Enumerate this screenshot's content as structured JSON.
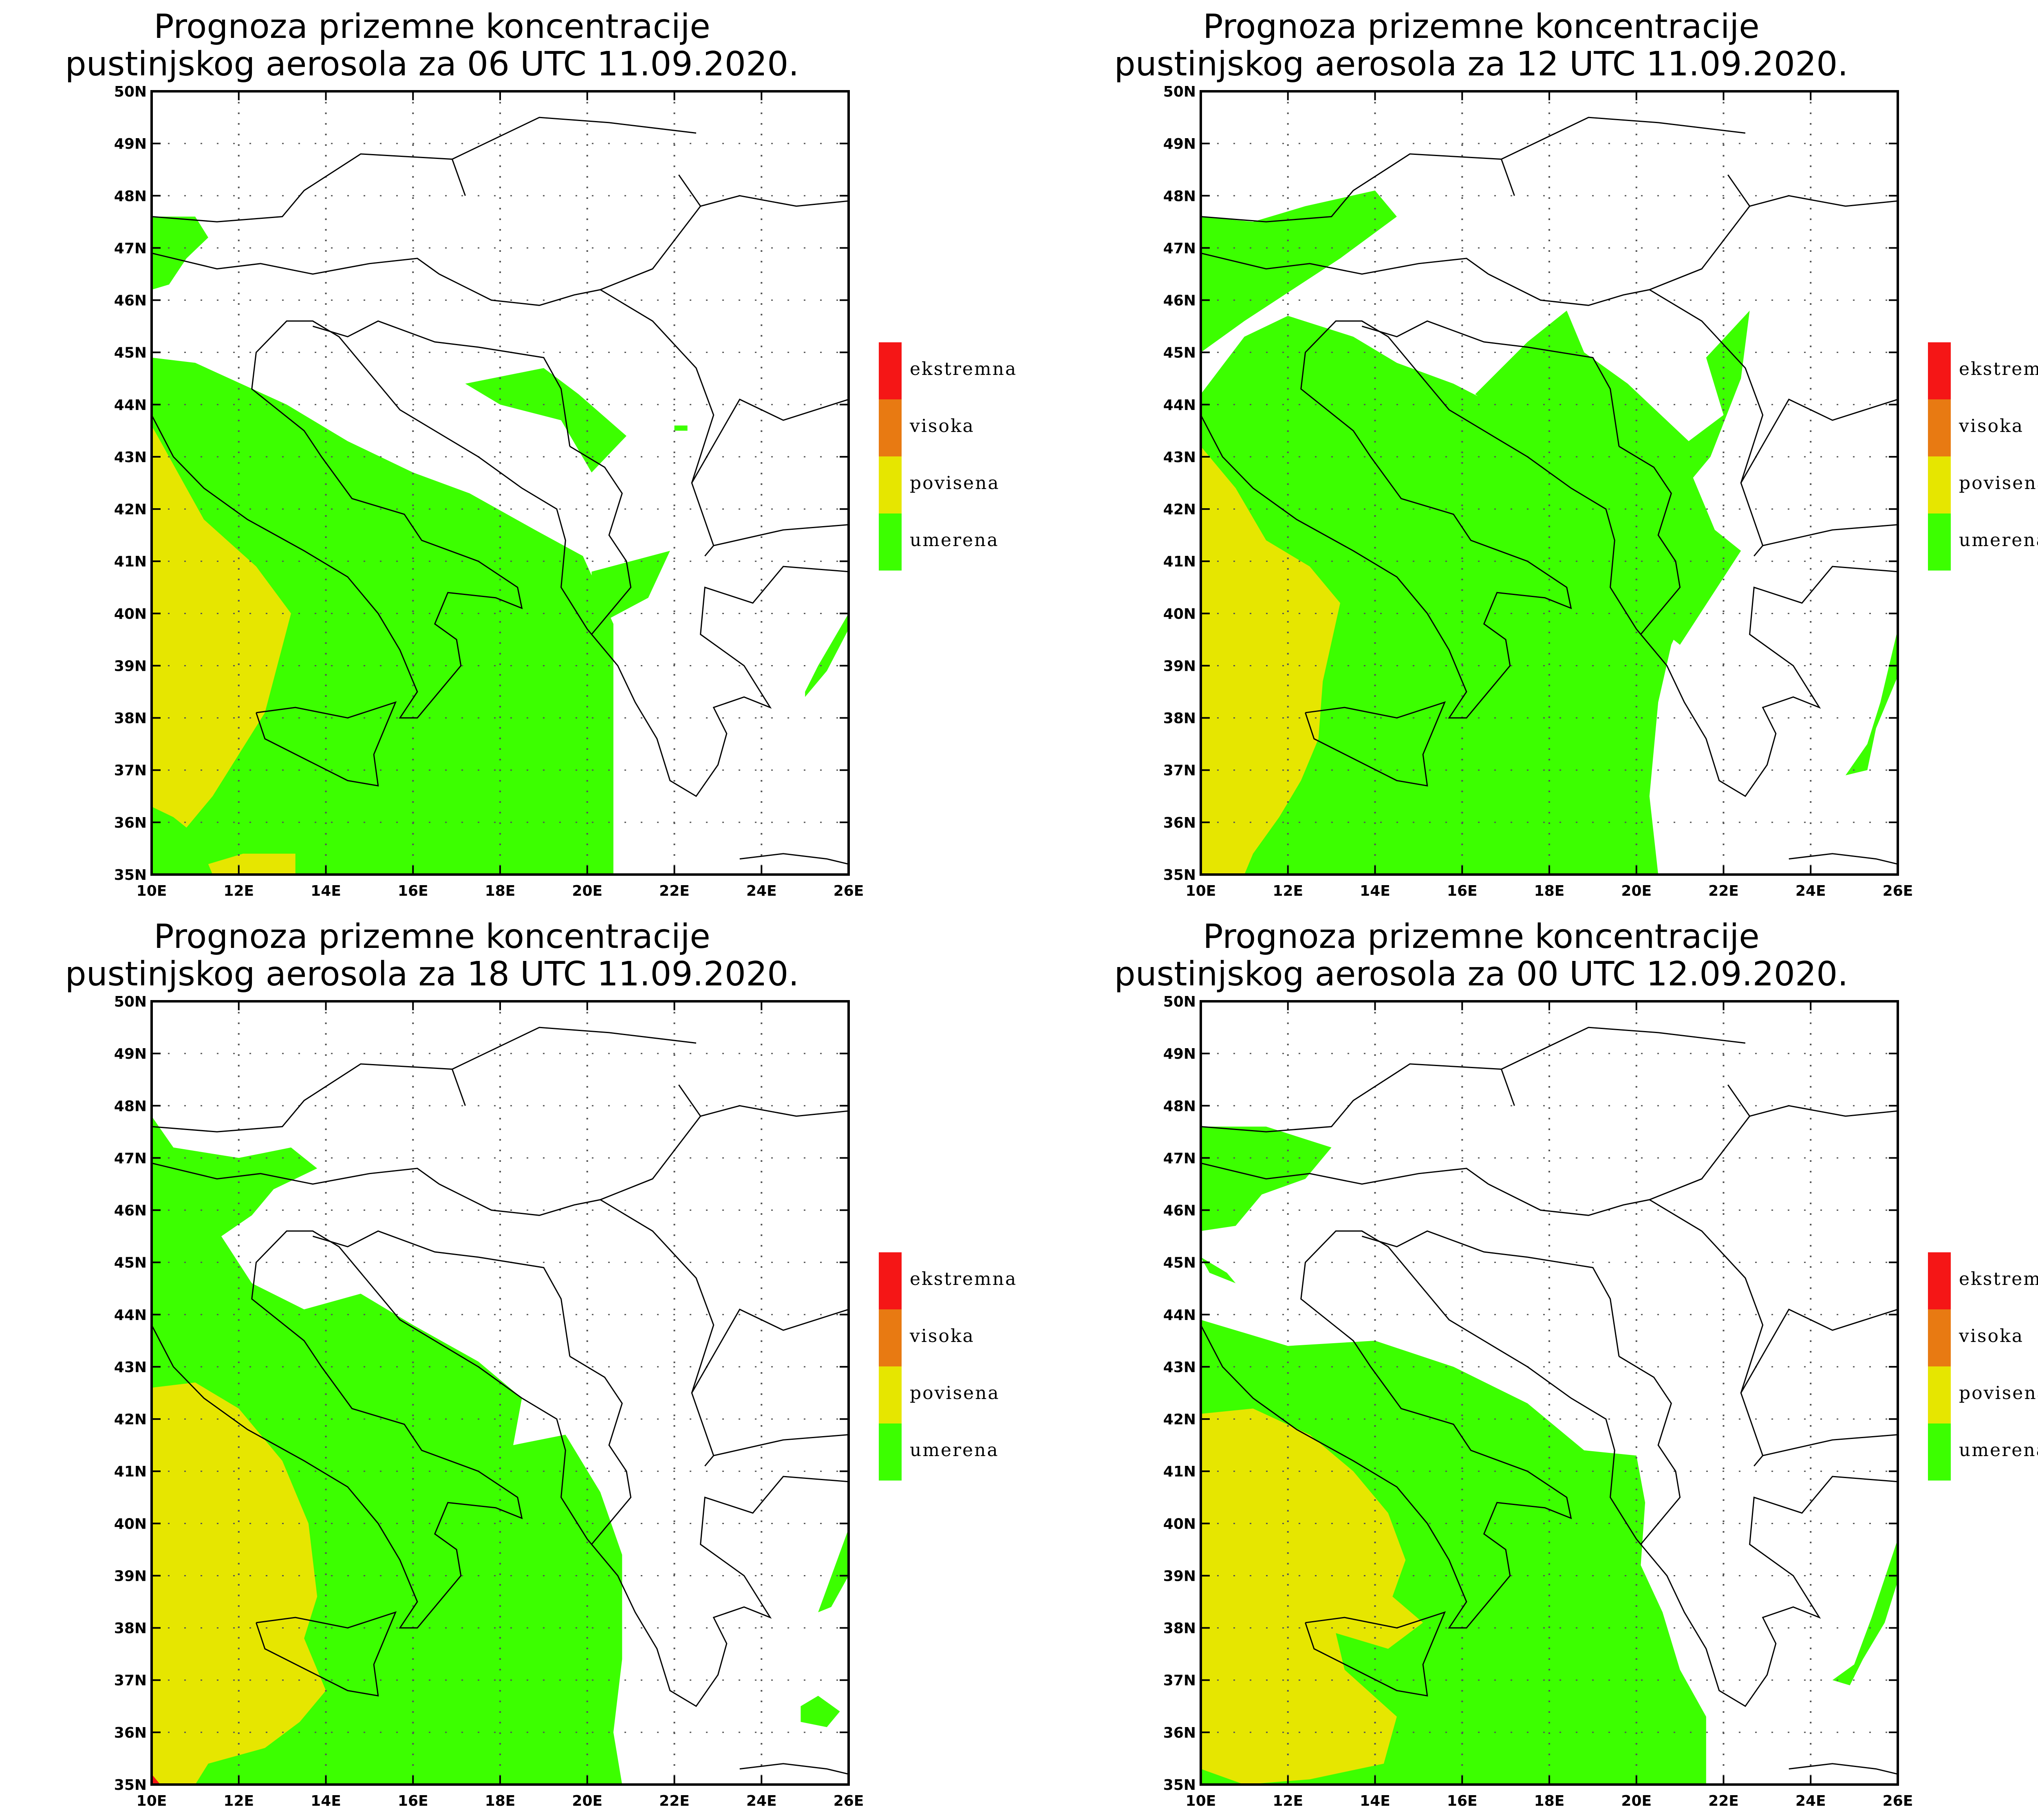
{
  "colors": {
    "umerena": "#3cff00",
    "povisena": "#e6e600",
    "visoka": "#e87a12",
    "ekstremna": "#f51616",
    "border": "#000000",
    "grid": "#555555"
  },
  "axes": {
    "lon_ticks": [
      "10E",
      "12E",
      "14E",
      "16E",
      "18E",
      "20E",
      "22E",
      "24E",
      "26E"
    ],
    "lat_ticks": [
      "35N",
      "36N",
      "37N",
      "38N",
      "39N",
      "40N",
      "41N",
      "42N",
      "43N",
      "44N",
      "45N",
      "46N",
      "47N",
      "48N",
      "49N",
      "50N"
    ]
  },
  "legend": {
    "items": [
      {
        "key": "ekstremna",
        "label": "ekstremna"
      },
      {
        "key": "visoka",
        "label": "visoka"
      },
      {
        "key": "povisena",
        "label": "povisena"
      },
      {
        "key": "umerena",
        "label": "umerena"
      }
    ]
  },
  "panels": [
    {
      "title_line1": "Prognoza prizemne koncentracije",
      "title_line2": "pustinjskog aerosola za 06 UTC 11.09.2020.",
      "regions": {
        "umerena": [
          [
            [
              10,
              36.3
            ],
            [
              10,
              44.9
            ],
            [
              11,
              44.8
            ],
            [
              13.1,
              44
            ],
            [
              14.5,
              43.3
            ],
            [
              16,
              42.7
            ],
            [
              17.3,
              42.3
            ],
            [
              18.8,
              41.6
            ],
            [
              19.9,
              41.1
            ],
            [
              20.6,
              39.8
            ],
            [
              20.6,
              35
            ],
            [
              10,
              35
            ]
          ],
          [
            [
              10,
              46.2
            ],
            [
              10,
              47.6
            ],
            [
              11,
              47.6
            ],
            [
              11.3,
              47.2
            ],
            [
              10.8,
              46.8
            ],
            [
              10.4,
              46.3
            ]
          ],
          [
            [
              17.2,
              44.4
            ],
            [
              19,
              44.7
            ],
            [
              19.8,
              44.2
            ],
            [
              20.9,
              43.4
            ],
            [
              20.1,
              42.7
            ],
            [
              19.4,
              43.7
            ],
            [
              18,
              44
            ]
          ],
          [
            [
              20.1,
              40.8
            ],
            [
              21.9,
              41.2
            ],
            [
              21.4,
              40.3
            ],
            [
              20.5,
              39.9
            ],
            [
              20.1,
              40.4
            ]
          ],
          [
            [
              22,
              43.6
            ],
            [
              22.3,
              43.6
            ],
            [
              22.3,
              43.5
            ],
            [
              22,
              43.5
            ]
          ],
          [
            [
              25,
              38.4
            ],
            [
              25.5,
              38.9
            ],
            [
              26,
              39.7
            ],
            [
              26,
              40
            ],
            [
              25.3,
              39
            ],
            [
              25,
              38.5
            ]
          ]
        ],
        "povisena": [
          [
            [
              10,
              35
            ],
            [
              10,
              43.6
            ],
            [
              11.2,
              41.8
            ],
            [
              12.4,
              40.9
            ],
            [
              13.2,
              40
            ],
            [
              12.6,
              38.1
            ],
            [
              11.4,
              36.5
            ],
            [
              10.8,
              35.9
            ],
            [
              10.5,
              36.1
            ],
            [
              10,
              36.3
            ]
          ],
          [
            [
              11.4,
              35
            ],
            [
              13.3,
              35
            ],
            [
              13.3,
              35.4
            ],
            [
              12.1,
              35.4
            ],
            [
              11.3,
              35.2
            ]
          ]
        ],
        "visoka": [],
        "ekstremna": []
      }
    },
    {
      "title_line1": "Prognoza prizemne koncentracije",
      "title_line2": "pustinjskog aerosola za 12 UTC 11.09.2020.",
      "regions": {
        "umerena": [
          [
            [
              10,
              35
            ],
            [
              10,
              44.2
            ],
            [
              11,
              45.3
            ],
            [
              12,
              45.7
            ],
            [
              13.5,
              45.3
            ],
            [
              14.5,
              44.8
            ],
            [
              15.8,
              44.4
            ],
            [
              17.2,
              43.8
            ],
            [
              18,
              43.2
            ],
            [
              19.3,
              42.6
            ],
            [
              19.7,
              41.9
            ],
            [
              21,
              41.2
            ],
            [
              21.3,
              40.3
            ],
            [
              20.8,
              39.4
            ],
            [
              20.5,
              38.3
            ],
            [
              20.3,
              36.5
            ],
            [
              20.5,
              35
            ],
            [
              10,
              35
            ]
          ],
          [
            [
              10,
              45
            ],
            [
              10,
              47.6
            ],
            [
              11.2,
              47.5
            ],
            [
              12.4,
              47.8
            ],
            [
              14,
              48.1
            ],
            [
              14.5,
              47.6
            ],
            [
              13.2,
              46.8
            ],
            [
              12.1,
              46.2
            ],
            [
              11,
              45.6
            ]
          ],
          [
            [
              16.3,
              44.2
            ],
            [
              17.5,
              45.2
            ],
            [
              18.4,
              45.8
            ],
            [
              18.8,
              45
            ],
            [
              19.8,
              44.4
            ],
            [
              21.2,
              43.3
            ],
            [
              22,
              43.8
            ],
            [
              21.6,
              44.9
            ],
            [
              22.6,
              45.8
            ],
            [
              22.4,
              44.5
            ],
            [
              21.7,
              43
            ],
            [
              21.3,
              42.6
            ],
            [
              21.8,
              41.6
            ],
            [
              22.4,
              41.2
            ],
            [
              21.7,
              40.3
            ],
            [
              21,
              39.4
            ],
            [
              19.8,
              40.2
            ],
            [
              19.7,
              41.9
            ],
            [
              19.1,
              42.3
            ],
            [
              18,
              43.2
            ],
            [
              17.2,
              43.6
            ]
          ],
          [
            [
              24.8,
              36.9
            ],
            [
              25.3,
              37.5
            ],
            [
              25.6,
              38.3
            ],
            [
              26,
              39.7
            ],
            [
              26,
              38.8
            ],
            [
              25.5,
              37.8
            ],
            [
              25.3,
              37
            ]
          ]
        ],
        "povisena": [
          [
            [
              10,
              35
            ],
            [
              10,
              43.2
            ],
            [
              10.8,
              42.4
            ],
            [
              11.5,
              41.4
            ],
            [
              12.5,
              40.9
            ],
            [
              13.2,
              40.2
            ],
            [
              12.8,
              38.7
            ],
            [
              12.7,
              37.6
            ],
            [
              12.3,
              36.8
            ],
            [
              11.8,
              36.1
            ],
            [
              11.2,
              35.4
            ],
            [
              11,
              35
            ]
          ]
        ],
        "visoka": [],
        "ekstremna": []
      }
    },
    {
      "title_line1": "Prognoza prizemne koncentracije",
      "title_line2": "pustinjskog aerosola za 18 UTC 11.09.2020.",
      "regions": {
        "umerena": [
          [
            [
              10,
              35
            ],
            [
              10,
              47.8
            ],
            [
              10.5,
              47.2
            ],
            [
              12,
              47
            ],
            [
              13.2,
              47.2
            ],
            [
              13.8,
              46.8
            ],
            [
              12.8,
              46.4
            ],
            [
              12.3,
              45.9
            ],
            [
              11.6,
              45.5
            ],
            [
              12.3,
              44.6
            ],
            [
              13.5,
              44.1
            ],
            [
              14.8,
              44.4
            ],
            [
              16,
              43.8
            ],
            [
              17.5,
              43.1
            ],
            [
              18.5,
              42.4
            ],
            [
              18.3,
              41.5
            ],
            [
              19.5,
              41.7
            ],
            [
              20.3,
              40.6
            ],
            [
              20.8,
              39.4
            ],
            [
              20.8,
              37.4
            ],
            [
              20.6,
              36
            ],
            [
              20.8,
              35
            ],
            [
              10,
              35
            ]
          ],
          [
            [
              24.9,
              36.2
            ],
            [
              25.5,
              36.1
            ],
            [
              25.8,
              36.4
            ],
            [
              25.3,
              36.7
            ],
            [
              24.9,
              36.5
            ]
          ],
          [
            [
              25.3,
              38.3
            ],
            [
              26,
              39.9
            ],
            [
              26,
              39
            ],
            [
              25.6,
              38.4
            ]
          ]
        ],
        "povisena": [
          [
            [
              10,
              35
            ],
            [
              10,
              42.6
            ],
            [
              11,
              42.7
            ],
            [
              12,
              42.2
            ],
            [
              13,
              41.2
            ],
            [
              13.6,
              40
            ],
            [
              13.8,
              38.6
            ],
            [
              13.5,
              37.8
            ],
            [
              14,
              36.8
            ],
            [
              13.4,
              36.2
            ],
            [
              12.6,
              35.7
            ],
            [
              11.3,
              35.4
            ],
            [
              11,
              35
            ]
          ]
        ],
        "visoka": [],
        "ekstremna": [
          [
            [
              10,
              35
            ],
            [
              10,
              35.2
            ],
            [
              10.2,
              35
            ]
          ]
        ]
      }
    },
    {
      "title_line1": "Prognoza prizemne koncentracije",
      "title_line2": "pustinjskog aerosola za 00 UTC 12.09.2020.",
      "regions": {
        "umerena": [
          [
            [
              10,
              35
            ],
            [
              10,
              43.9
            ],
            [
              12,
              43.4
            ],
            [
              14,
              43.5
            ],
            [
              15.8,
              43
            ],
            [
              17.5,
              42.3
            ],
            [
              18.8,
              41.4
            ],
            [
              20,
              41.3
            ],
            [
              20.2,
              40.4
            ],
            [
              20.1,
              39.2
            ],
            [
              20.6,
              38.3
            ],
            [
              21,
              37.2
            ],
            [
              21.6,
              36.3
            ],
            [
              21.6,
              35
            ],
            [
              10,
              35
            ]
          ],
          [
            [
              10,
              45.6
            ],
            [
              10,
              47.6
            ],
            [
              11.5,
              47.6
            ],
            [
              13,
              47.2
            ],
            [
              12.4,
              46.6
            ],
            [
              11.4,
              46.3
            ],
            [
              10.8,
              45.7
            ]
          ],
          [
            [
              10,
              45.1
            ],
            [
              10.6,
              44.8
            ],
            [
              10.8,
              44.6
            ],
            [
              10.2,
              44.8
            ]
          ],
          [
            [
              24.5,
              37
            ],
            [
              25,
              37.3
            ],
            [
              25.4,
              38.2
            ],
            [
              26,
              39.7
            ],
            [
              26,
              38.9
            ],
            [
              25.7,
              38.1
            ],
            [
              25.2,
              37.4
            ],
            [
              24.9,
              36.9
            ]
          ]
        ],
        "povisena": [
          [
            [
              10,
              35.3
            ],
            [
              10,
              42.1
            ],
            [
              11.2,
              42.2
            ],
            [
              12.5,
              41.7
            ],
            [
              13.5,
              41
            ],
            [
              14.3,
              40.2
            ],
            [
              14.7,
              39.3
            ],
            [
              14.4,
              38.6
            ],
            [
              15.1,
              38.1
            ],
            [
              14.3,
              37.6
            ],
            [
              13.1,
              37.9
            ],
            [
              13.3,
              37.2
            ],
            [
              14.5,
              36.3
            ],
            [
              14.2,
              35.4
            ],
            [
              12.5,
              35.1
            ],
            [
              11,
              35
            ]
          ],
          [
            [
              10,
              37.8
            ],
            [
              10,
              39
            ],
            [
              10.8,
              39
            ],
            [
              10.7,
              38.2
            ]
          ]
        ],
        "visoka": [],
        "ekstremna": []
      }
    }
  ]
}
